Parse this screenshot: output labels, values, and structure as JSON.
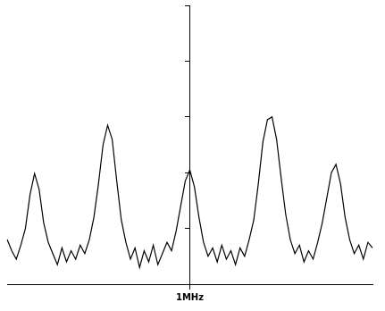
{
  "chart_data": {
    "type": "line",
    "categories": [
      null,
      null,
      null,
      null,
      null,
      null,
      null,
      null,
      null,
      null,
      null,
      null,
      null,
      null,
      null,
      null,
      null,
      null,
      null,
      null,
      null,
      null,
      null,
      null,
      null,
      null,
      null,
      null,
      null,
      null,
      null,
      null,
      null,
      null,
      null,
      null,
      null,
      null,
      null,
      null,
      "1MHz",
      null,
      null,
      null,
      null,
      null,
      null,
      null,
      null,
      null,
      null,
      null,
      null,
      null,
      null,
      null,
      null,
      null,
      null,
      null,
      null,
      null,
      null,
      null,
      null,
      null,
      null,
      null,
      null,
      null,
      null,
      null,
      null,
      null,
      null,
      null,
      null,
      null,
      null,
      null,
      null
    ],
    "values": [
      1.6,
      1.2,
      0.9,
      1.4,
      2.0,
      3.2,
      3.97,
      3.4,
      2.2,
      1.5,
      1.1,
      0.7,
      1.3,
      0.8,
      1.2,
      0.9,
      1.4,
      1.1,
      1.6,
      2.4,
      3.6,
      5.0,
      5.7,
      5.2,
      3.7,
      2.3,
      1.5,
      0.9,
      1.3,
      0.6,
      1.2,
      0.8,
      1.4,
      0.7,
      1.1,
      1.5,
      1.2,
      1.9,
      2.8,
      3.7,
      4.1,
      3.5,
      2.4,
      1.5,
      1.0,
      1.3,
      0.8,
      1.4,
      0.9,
      1.2,
      0.7,
      1.3,
      1.0,
      1.6,
      2.3,
      3.6,
      5.1,
      5.9,
      6.0,
      5.2,
      3.8,
      2.5,
      1.6,
      1.1,
      1.4,
      0.8,
      1.2,
      0.9,
      1.5,
      2.2,
      3.1,
      4.0,
      4.3,
      3.6,
      2.4,
      1.6,
      1.1,
      1.4,
      0.9,
      1.5,
      1.3
    ],
    "color": "#000000",
    "ylim": [
      0,
      10
    ],
    "yticks": [
      0,
      2,
      4,
      6,
      8,
      10
    ],
    "grid": false,
    "tick_labels": "x"
  }
}
